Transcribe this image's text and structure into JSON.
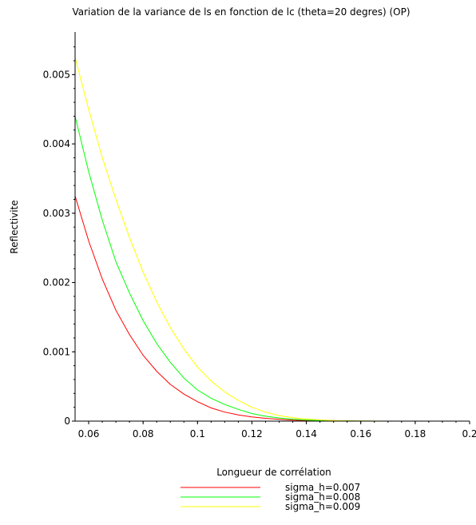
{
  "chart_data": {
    "type": "line",
    "title": "Variation de la variance de ls en fonction de lc (theta=20 degres) (OP)",
    "xlabel": "Longueur de corrélation",
    "ylabel": "Reflectivite",
    "xlim": [
      0.055,
      0.2
    ],
    "ylim": [
      0,
      0.0055
    ],
    "x_ticks": [
      0.06,
      0.08,
      0.1,
      0.12,
      0.14,
      0.16,
      0.18,
      0.2
    ],
    "x_tick_labels": [
      "0.06",
      "0.08",
      "0.1",
      "0.12",
      "0.14",
      "0.16",
      "0.18",
      "0.2"
    ],
    "y_ticks": [
      0,
      0.001,
      0.002,
      0.003,
      0.004,
      0.005
    ],
    "y_tick_labels": [
      "0",
      "0.001",
      "0.002",
      "0.003",
      "0.004",
      "0.005"
    ],
    "grid": false,
    "legend_position": "bottom",
    "x": [
      0.055,
      0.06,
      0.065,
      0.07,
      0.075,
      0.08,
      0.085,
      0.09,
      0.095,
      0.1,
      0.105,
      0.11,
      0.115,
      0.12,
      0.125,
      0.13,
      0.135,
      0.14,
      0.145,
      0.15,
      0.155,
      0.16,
      0.165,
      0.17
    ],
    "series": [
      {
        "name": "sigma_h=0.007",
        "color": "#ff0000",
        "values": [
          0.00325,
          0.0026,
          0.00205,
          0.0016,
          0.00125,
          0.00095,
          0.00072,
          0.00053,
          0.00039,
          0.00028,
          0.00019,
          0.00013,
          9e-05,
          6e-05,
          4e-05,
          2.5e-05,
          1.5e-05,
          8e-06,
          4e-06,
          2e-06,
          1e-06,
          0.0,
          0.0,
          0.0
        ]
      },
      {
        "name": "sigma_h=0.008",
        "color": "#00ff00",
        "values": [
          0.0044,
          0.0036,
          0.0029,
          0.0023,
          0.00185,
          0.00145,
          0.00112,
          0.00085,
          0.00062,
          0.00045,
          0.00033,
          0.00024,
          0.00017,
          0.00011,
          7e-05,
          4.5e-05,
          2.8e-05,
          1.6e-05,
          9e-06,
          5e-06,
          2e-06,
          1e-06,
          0.0,
          0.0
        ]
      },
      {
        "name": "sigma_h=0.009",
        "color": "#ffff00",
        "values": [
          0.00525,
          0.0045,
          0.0038,
          0.0032,
          0.00265,
          0.00215,
          0.00172,
          0.00135,
          0.00104,
          0.00078,
          0.00058,
          0.00042,
          0.0003,
          0.0002,
          0.00013,
          8e-05,
          5e-05,
          3e-05,
          1.7e-05,
          9e-06,
          4e-06,
          2e-06,
          1e-06,
          0.0
        ]
      }
    ]
  }
}
